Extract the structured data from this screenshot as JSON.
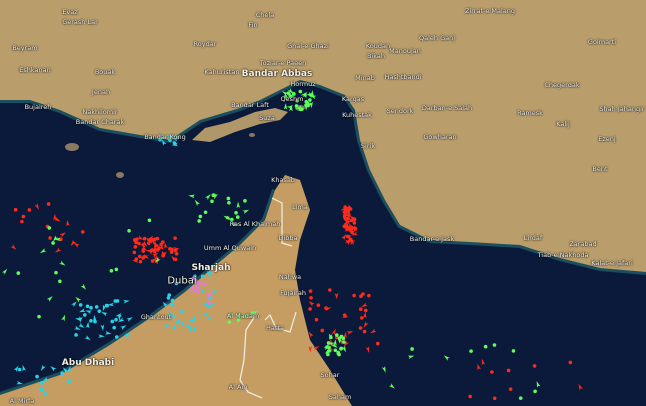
{
  "map": {
    "colors": {
      "water": "#0b1a3a",
      "land": "#b99d6a",
      "coast": "#2f8f8c",
      "tanker": "#ff2a1a",
      "cargo": "#5cff5c",
      "passenger": "#29d3e6",
      "pleasure": "#e27ad8"
    },
    "places": [
      {
        "name": "Evaz"
      },
      {
        "name": "Gerash Lar"
      },
      {
        "name": "Chela"
      },
      {
        "name": "Fin"
      },
      {
        "name": "Beyram"
      },
      {
        "name": "Roydar"
      },
      {
        "name": "Ghal-e Ghazi"
      },
      {
        "name": "Eshkanan"
      },
      {
        "name": "Bouak"
      },
      {
        "name": "Kahuristan"
      },
      {
        "name": "Toziar-e Paeen"
      },
      {
        "name": "Bandar Abbas"
      },
      {
        "name": "Hormuz"
      },
      {
        "name": "Jenah"
      },
      {
        "name": "Qeshm"
      },
      {
        "name": "Bandar Laft"
      },
      {
        "name": "Bujaireh"
      },
      {
        "name": "Nakhilomir"
      },
      {
        "name": "Bandar Charak"
      },
      {
        "name": "Suza"
      },
      {
        "name": "Bandar Kong"
      },
      {
        "name": "Zirrat-e Malang"
      },
      {
        "name": "Qaleh Ganj"
      },
      {
        "name": "Koudan"
      },
      {
        "name": "Bikah"
      },
      {
        "name": "Manoujan"
      },
      {
        "name": "Golmarti"
      },
      {
        "name": "Minab"
      },
      {
        "name": "Hashtbandi"
      },
      {
        "name": "Chegerdak"
      },
      {
        "name": "Kargas"
      },
      {
        "name": "Kuhestak"
      },
      {
        "name": "Sendork"
      },
      {
        "name": "Darban-e Salah"
      },
      {
        "name": "Ramesk"
      },
      {
        "name": "Shah Jahangir"
      },
      {
        "name": "Kalij"
      },
      {
        "name": "Gowharan"
      },
      {
        "name": "Ezenj"
      },
      {
        "name": "Sirik"
      },
      {
        "name": "Bent"
      },
      {
        "name": "Bandar-e Jask"
      },
      {
        "name": "Lirdaf"
      },
      {
        "name": "Zarabad"
      },
      {
        "name": "Tiab-e Nakhoda"
      },
      {
        "name": "Kalat-e Jafari"
      },
      {
        "name": "Sohar"
      },
      {
        "name": "Saham"
      },
      {
        "name": "Khasab"
      },
      {
        "name": "Lima"
      },
      {
        "name": "Ras Al Khaimah"
      },
      {
        "name": "Dibba"
      },
      {
        "name": "Umm Al Quwain"
      },
      {
        "name": "Sharjah"
      },
      {
        "name": "Dubai"
      },
      {
        "name": "Nahwa"
      },
      {
        "name": "Fujairah"
      },
      {
        "name": "Al Madam"
      },
      {
        "name": "Hatta"
      },
      {
        "name": "Ghantout"
      },
      {
        "name": "Abu Dhabi"
      },
      {
        "name": "Al Ain"
      },
      {
        "name": "Al Mirfa"
      }
    ]
  }
}
